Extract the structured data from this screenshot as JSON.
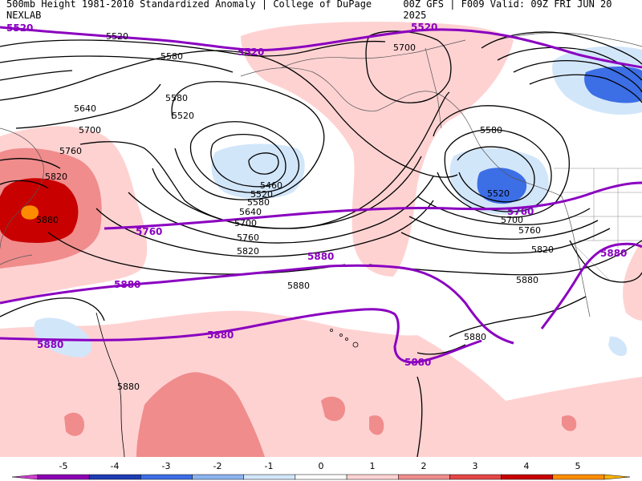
{
  "header": {
    "left_title": "500mb Height 1981-2010 Standardized Anomaly | College of DuPage NEXLAB",
    "right_title": "00Z GFS | F009 Valid: 09Z FRI JUN 20 2025"
  },
  "contour_labels": {
    "purple": [
      "5520",
      "5520",
      "5520",
      "5760",
      "5760",
      "5880",
      "5880",
      "5880",
      "5880",
      "5880",
      "5880"
    ],
    "black": [
      "5520",
      "5580",
      "5640",
      "5700",
      "5760",
      "5820",
      "5880",
      "5580",
      "5520",
      "5460",
      "5520",
      "5580",
      "5640",
      "5700",
      "5760",
      "5820",
      "5880",
      "5700",
      "5580",
      "5520",
      "5700",
      "5760",
      "5820",
      "5880",
      "5880",
      "5880"
    ]
  },
  "colorbar": {
    "labels": [
      "-5",
      "-4",
      "-3",
      "-2",
      "-1",
      "0",
      "1",
      "2",
      "3",
      "4",
      "5"
    ],
    "colors": [
      "#d040d0",
      "#8c00b4",
      "#1e3cb4",
      "#3c6ee6",
      "#8cb4f0",
      "#d2e6fa",
      "#ffffff",
      "#ffd2d2",
      "#f08c8c",
      "#e64646",
      "#c80000",
      "#ff8c00",
      "#ffb400"
    ]
  },
  "anomaly_colors": {
    "neg1": "#d2e6fa",
    "neg2": "#8cb4f0",
    "neg3": "#3c6ee6",
    "pos1": "#ffd2d2",
    "pos2": "#f08c8c",
    "pos3": "#e64646",
    "pos4": "#c80000",
    "pos5": "#ff8c00",
    "contour_purple": "#8a00c0"
  }
}
